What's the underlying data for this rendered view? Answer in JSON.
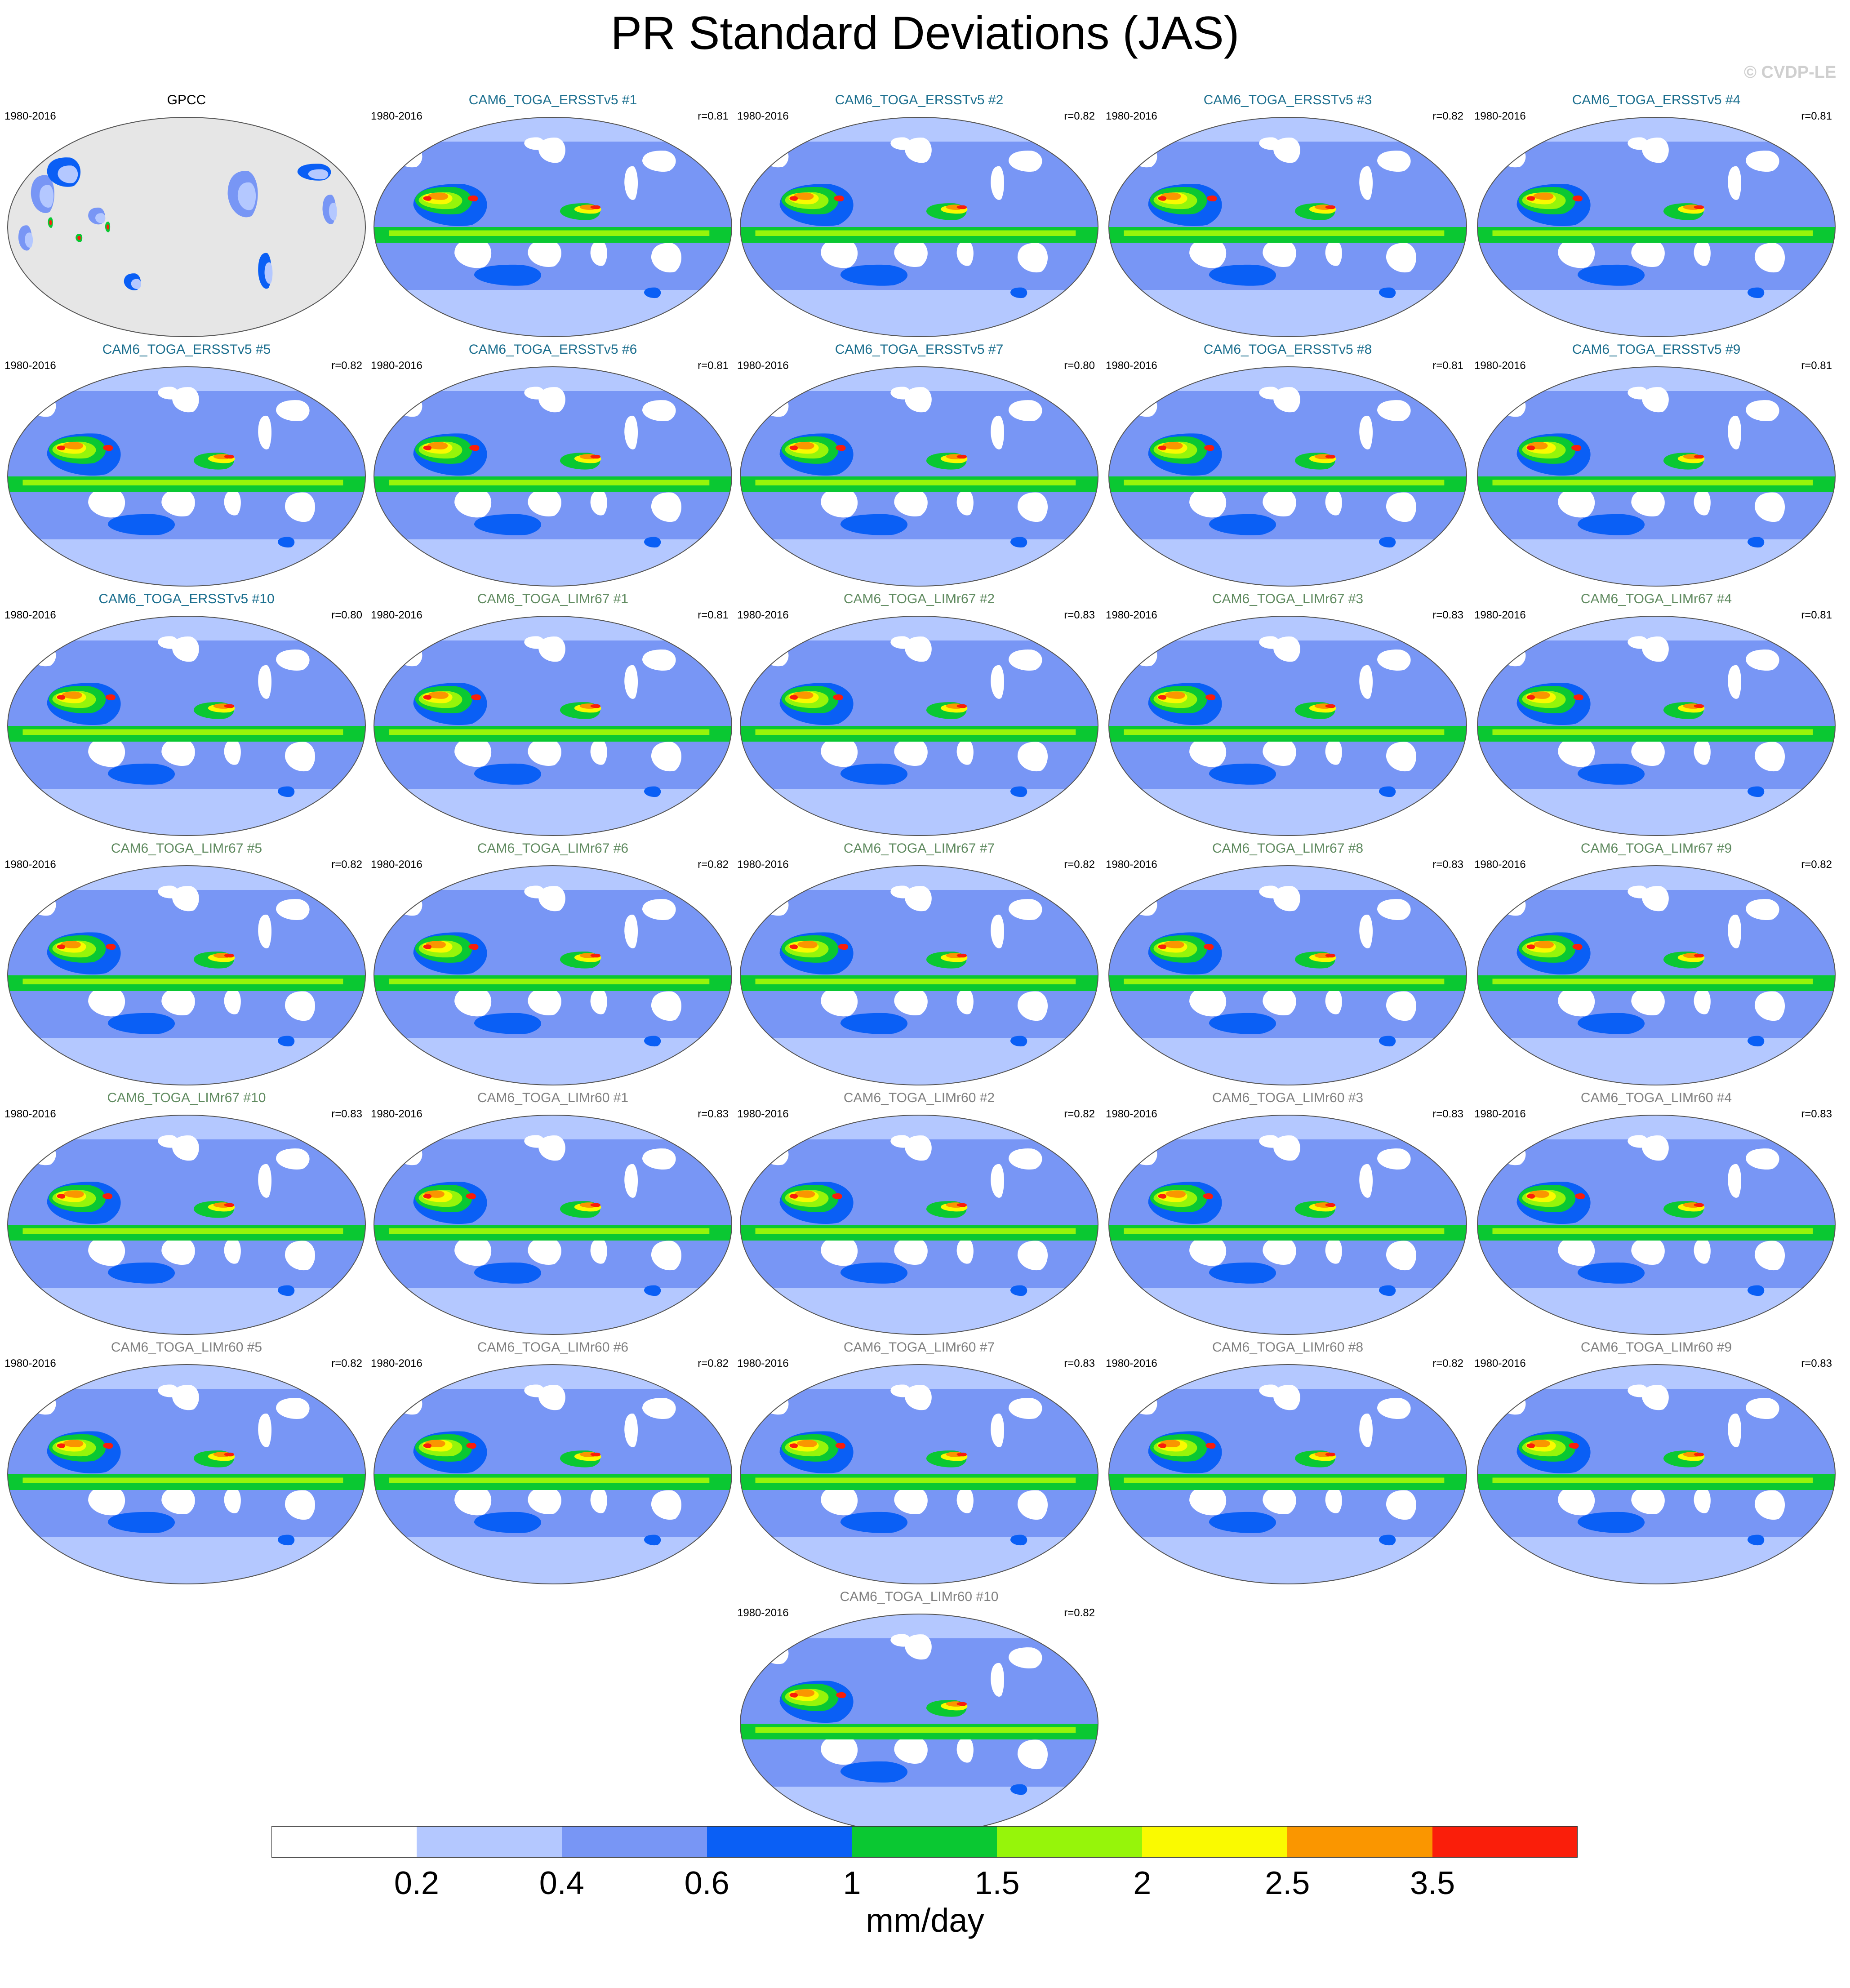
{
  "title": "PR Standard Deviations (JAS)",
  "watermark": "© CVDP-LE",
  "colors": {
    "ersst_title": "#1a6e8e",
    "limr67_title": "#5f8a5f",
    "limr60_title": "#808080",
    "obs_title": "#000000",
    "land_mask": "#e6e6e6",
    "coast": "#555555"
  },
  "panels": [
    {
      "title": "GPCC",
      "years": "1980-2016",
      "r": "",
      "group": "obs"
    },
    {
      "title": "CAM6_TOGA_ERSSTv5 #1",
      "years": "1980-2016",
      "r": "r=0.81",
      "group": "ersst"
    },
    {
      "title": "CAM6_TOGA_ERSSTv5 #2",
      "years": "1980-2016",
      "r": "r=0.82",
      "group": "ersst"
    },
    {
      "title": "CAM6_TOGA_ERSSTv5 #3",
      "years": "1980-2016",
      "r": "r=0.82",
      "group": "ersst"
    },
    {
      "title": "CAM6_TOGA_ERSSTv5 #4",
      "years": "1980-2016",
      "r": "r=0.81",
      "group": "ersst"
    },
    {
      "title": "CAM6_TOGA_ERSSTv5 #5",
      "years": "1980-2016",
      "r": "r=0.82",
      "group": "ersst"
    },
    {
      "title": "CAM6_TOGA_ERSSTv5 #6",
      "years": "1980-2016",
      "r": "r=0.81",
      "group": "ersst"
    },
    {
      "title": "CAM6_TOGA_ERSSTv5 #7",
      "years": "1980-2016",
      "r": "r=0.80",
      "group": "ersst"
    },
    {
      "title": "CAM6_TOGA_ERSSTv5 #8",
      "years": "1980-2016",
      "r": "r=0.81",
      "group": "ersst"
    },
    {
      "title": "CAM6_TOGA_ERSSTv5 #9",
      "years": "1980-2016",
      "r": "r=0.81",
      "group": "ersst"
    },
    {
      "title": "CAM6_TOGA_ERSSTv5 #10",
      "years": "1980-2016",
      "r": "r=0.80",
      "group": "ersst"
    },
    {
      "title": "CAM6_TOGA_LIMr67 #1",
      "years": "1980-2016",
      "r": "r=0.81",
      "group": "limr67"
    },
    {
      "title": "CAM6_TOGA_LIMr67 #2",
      "years": "1980-2016",
      "r": "r=0.83",
      "group": "limr67"
    },
    {
      "title": "CAM6_TOGA_LIMr67 #3",
      "years": "1980-2016",
      "r": "r=0.83",
      "group": "limr67"
    },
    {
      "title": "CAM6_TOGA_LIMr67 #4",
      "years": "1980-2016",
      "r": "r=0.81",
      "group": "limr67"
    },
    {
      "title": "CAM6_TOGA_LIMr67 #5",
      "years": "1980-2016",
      "r": "r=0.82",
      "group": "limr67"
    },
    {
      "title": "CAM6_TOGA_LIMr67 #6",
      "years": "1980-2016",
      "r": "r=0.82",
      "group": "limr67"
    },
    {
      "title": "CAM6_TOGA_LIMr67 #7",
      "years": "1980-2016",
      "r": "r=0.82",
      "group": "limr67"
    },
    {
      "title": "CAM6_TOGA_LIMr67 #8",
      "years": "1980-2016",
      "r": "r=0.83",
      "group": "limr67"
    },
    {
      "title": "CAM6_TOGA_LIMr67 #9",
      "years": "1980-2016",
      "r": "r=0.82",
      "group": "limr67"
    },
    {
      "title": "CAM6_TOGA_LIMr67 #10",
      "years": "1980-2016",
      "r": "r=0.83",
      "group": "limr67"
    },
    {
      "title": "CAM6_TOGA_LIMr60 #1",
      "years": "1980-2016",
      "r": "r=0.83",
      "group": "limr60"
    },
    {
      "title": "CAM6_TOGA_LIMr60 #2",
      "years": "1980-2016",
      "r": "r=0.82",
      "group": "limr60"
    },
    {
      "title": "CAM6_TOGA_LIMr60 #3",
      "years": "1980-2016",
      "r": "r=0.83",
      "group": "limr60"
    },
    {
      "title": "CAM6_TOGA_LIMr60 #4",
      "years": "1980-2016",
      "r": "r=0.83",
      "group": "limr60"
    },
    {
      "title": "CAM6_TOGA_LIMr60 #5",
      "years": "1980-2016",
      "r": "r=0.82",
      "group": "limr60"
    },
    {
      "title": "CAM6_TOGA_LIMr60 #6",
      "years": "1980-2016",
      "r": "r=0.82",
      "group": "limr60"
    },
    {
      "title": "CAM6_TOGA_LIMr60 #7",
      "years": "1980-2016",
      "r": "r=0.83",
      "group": "limr60"
    },
    {
      "title": "CAM6_TOGA_LIMr60 #8",
      "years": "1980-2016",
      "r": "r=0.82",
      "group": "limr60"
    },
    {
      "title": "CAM6_TOGA_LIMr60 #9",
      "years": "1980-2016",
      "r": "r=0.83",
      "group": "limr60"
    },
    {
      "title": "CAM6_TOGA_LIMr60 #10",
      "years": "1980-2016",
      "r": "r=0.82",
      "group": "limr60"
    }
  ],
  "colorbar": {
    "unit": "mm/day",
    "tick_labels": [
      "0.2",
      "0.4",
      "0.6",
      "1",
      "1.5",
      "2",
      "2.5",
      "3.5"
    ],
    "colors": [
      "#ffffff",
      "#b4c8ff",
      "#7896f5",
      "#0a5ff5",
      "#0ac832",
      "#96f50a",
      "#fafa00",
      "#fa9600",
      "#fa1e0a"
    ]
  }
}
